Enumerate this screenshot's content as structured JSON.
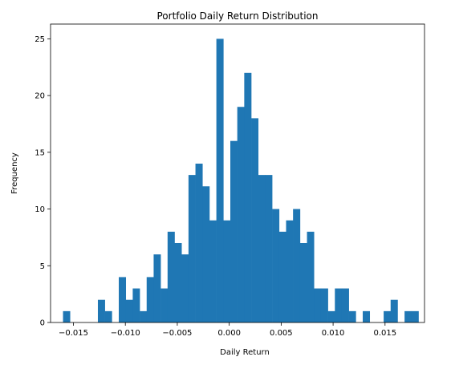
{
  "chart_data": {
    "type": "bar",
    "title": "Portfolio Daily Return Distribution",
    "xlabel": "Daily Return",
    "ylabel": "Frequency",
    "xlim": [
      -0.0172,
      0.0188
    ],
    "ylim": [
      0,
      26.3
    ],
    "xticks": [
      -0.015,
      -0.01,
      -0.005,
      0.0,
      0.005,
      0.01,
      0.015
    ],
    "xtick_labels": [
      "−0.015",
      "−0.010",
      "−0.005",
      "0.000",
      "0.005",
      "0.010",
      "0.015"
    ],
    "yticks": [
      0,
      5,
      10,
      15,
      20,
      25
    ],
    "ytick_labels": [
      "0",
      "5",
      "10",
      "15",
      "20",
      "25"
    ],
    "bin_start": -0.016,
    "bin_width": 0.000671,
    "counts": [
      1,
      0,
      0,
      0,
      0,
      2,
      1,
      0,
      4,
      2,
      3,
      1,
      4,
      6,
      3,
      8,
      7,
      6,
      13,
      14,
      12,
      9,
      25,
      9,
      16,
      19,
      22,
      18,
      13,
      13,
      10,
      8,
      9,
      10,
      7,
      8,
      3,
      3,
      1,
      3,
      3,
      1,
      0,
      1,
      0,
      0,
      1,
      2,
      0,
      1,
      1
    ],
    "bar_color": "#1f77b4",
    "grid": false
  }
}
